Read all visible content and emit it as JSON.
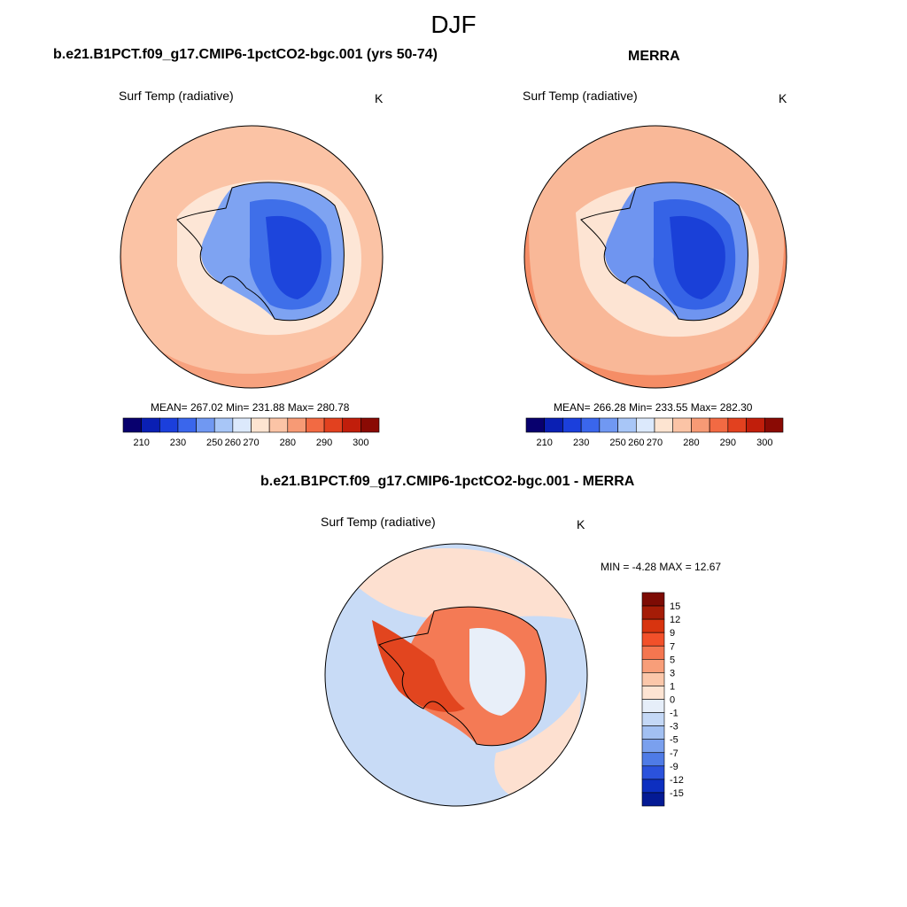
{
  "season": "DJF",
  "panels": [
    {
      "title": "b.e21.B1PCT.f09_g17.CMIP6-1pctCO2-bgc.001 (yrs 50-74)",
      "variable": "Surf Temp (radiative)",
      "units": "K",
      "stats": "MEAN= 267.02  Min= 231.88  Max= 280.78"
    },
    {
      "title": "MERRA",
      "variable": "Surf Temp (radiative)",
      "units": "K",
      "stats": "MEAN= 266.28  Min= 233.55  Max= 282.30"
    },
    {
      "title": "b.e21.B1PCT.f09_g17.CMIP6-1pctCO2-bgc.001 - MERRA",
      "variable": "Surf Temp (radiative)",
      "units": "K",
      "stats": "MIN =  -4.28 MAX =  12.67"
    }
  ],
  "abs_colorbar": {
    "labels": [
      "210",
      "230",
      "250",
      "260",
      "270",
      "280",
      "290",
      "300"
    ],
    "colors": [
      "#08006e",
      "#0a1fb3",
      "#1b3fdc",
      "#3a66ec",
      "#7098f2",
      "#a8c6f7",
      "#dce9fc",
      "#fde4d1",
      "#fbc4a6",
      "#f79a75",
      "#f26a43",
      "#e2411f",
      "#c11e0b",
      "#8a0a04"
    ]
  },
  "diff_colorbar": {
    "labels": [
      "15",
      "12",
      "9",
      "7",
      "5",
      "3",
      "1",
      "0",
      "-1",
      "-3",
      "-5",
      "-7",
      "-9",
      "-12",
      "-15"
    ],
    "colors": [
      "#7d0b04",
      "#a51c07",
      "#d8340f",
      "#f2502a",
      "#f47650",
      "#f89e79",
      "#fbc7aa",
      "#fde4d3",
      "#e6eef9",
      "#c4d8f6",
      "#a2c0f2",
      "#7aa0ee",
      "#4f7be6",
      "#2b52dc",
      "#0d2fc0",
      "#041a94"
    ]
  }
}
